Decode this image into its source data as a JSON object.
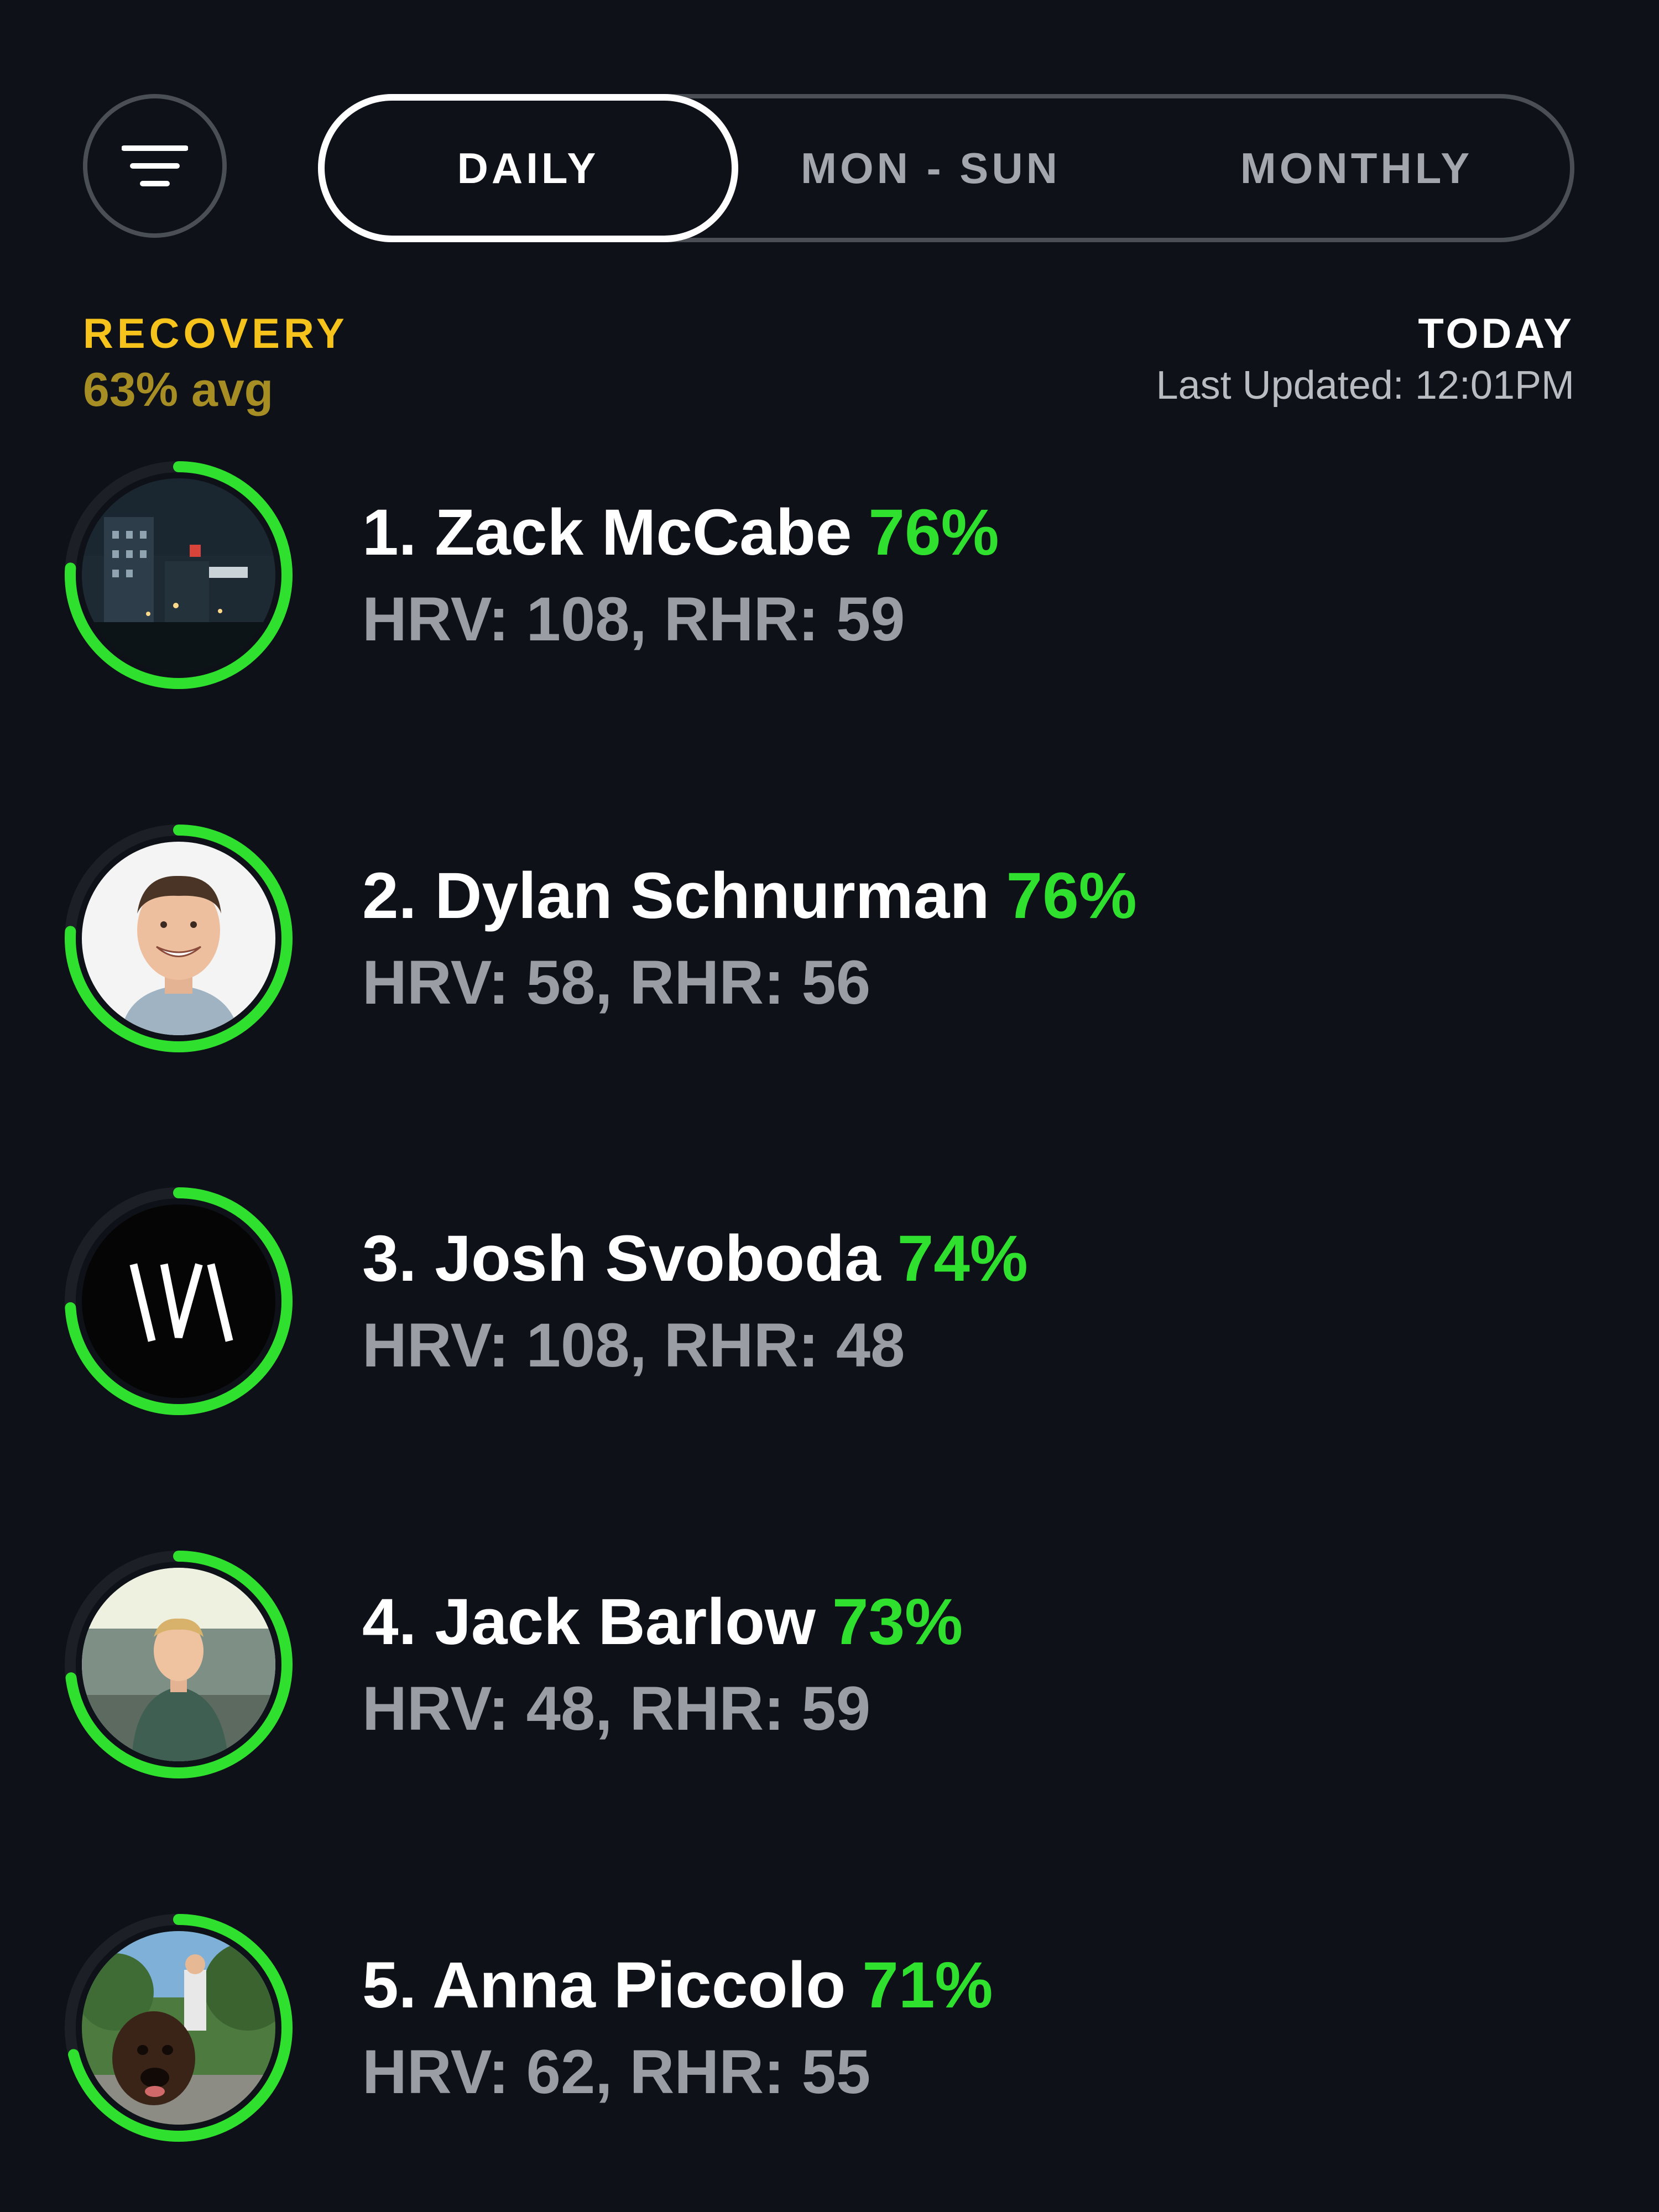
{
  "header": {
    "filter_icon": "filter-lines-icon",
    "tabs": [
      {
        "label": "DAILY",
        "selected": true
      },
      {
        "label": "MON - SUN",
        "selected": false
      },
      {
        "label": "MONTHLY",
        "selected": false
      }
    ]
  },
  "summary": {
    "metric_title": "RECOVERY",
    "metric_avg": "63% avg",
    "period_label": "TODAY",
    "last_updated": "Last Updated: 12:01PM"
  },
  "colors": {
    "background": "#0e1117",
    "accent_green": "#2fe02f",
    "metric_yellow": "#f5c31b",
    "metric_avg_gold": "#a78e24",
    "muted_text": "#9a9ea4"
  },
  "leaderboard": [
    {
      "rank_name": "1. Zack McCabe",
      "pct": "76%",
      "stats": "HRV: 108, RHR: 59",
      "recovery_fraction": 0.76,
      "avatar": "city-night-photo"
    },
    {
      "rank_name": "2. Dylan Schnurman",
      "pct": "76%",
      "stats": "HRV: 58, RHR: 56",
      "recovery_fraction": 0.76,
      "avatar": "smiling-man-portrait"
    },
    {
      "rank_name": "3. Josh Svoboda",
      "pct": "74%",
      "stats": "HRV: 108, RHR: 48",
      "recovery_fraction": 0.74,
      "avatar": "w-logo-mark"
    },
    {
      "rank_name": "4. Jack Barlow",
      "pct": "73%",
      "stats": "HRV: 48, RHR: 59",
      "recovery_fraction": 0.73,
      "avatar": "man-green-jacket-photo"
    },
    {
      "rank_name": "5. Anna Piccolo",
      "pct": "71%",
      "stats": "HRV: 62, RHR: 55",
      "recovery_fraction": 0.71,
      "avatar": "dog-outdoors-photo"
    }
  ]
}
